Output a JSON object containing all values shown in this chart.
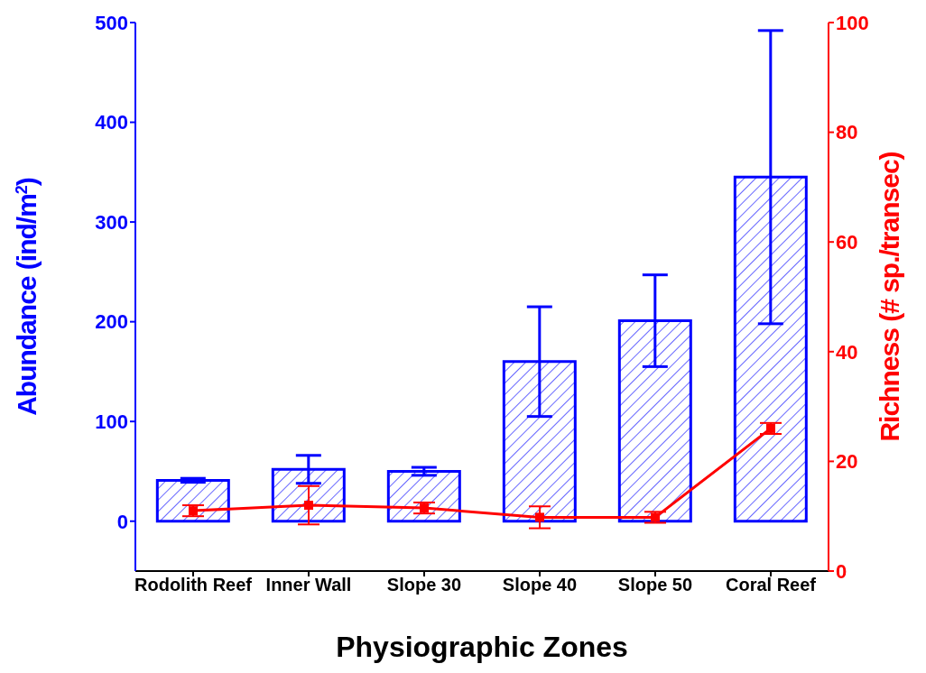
{
  "chart_data": {
    "type": "bar",
    "xlabel": "Physiographic Zones",
    "ylabel": "Abundance (ind/m$^{2}$)",
    "y2label": "Richness (# sp./transec)",
    "categories": [
      "Rodolith Reef",
      "Inner Wall",
      "Slope 30",
      "Slope 40",
      "Slope 50",
      "Coral Reef"
    ],
    "series": [
      {
        "color": "#0000ff",
        "values": [
          41,
          52,
          50,
          160,
          201,
          345
        ],
        "errors": [
          2,
          14,
          4,
          55,
          46,
          147
        ]
      },
      {
        "type": "line",
        "axis": "y2",
        "color": "#ff0000",
        "values": [
          11,
          12,
          11.5,
          9.8,
          9.8,
          26
        ],
        "errors": [
          1,
          3.5,
          1,
          2,
          1,
          1
        ],
        "marker": "square",
        "line_style": "solid"
      }
    ],
    "ylim": [
      -50,
      500
    ],
    "yticks": [
      0,
      100,
      200,
      300,
      400,
      500
    ],
    "y2lim": [
      0,
      100
    ],
    "y2ticks": [
      0,
      20,
      40,
      60,
      80,
      100
    ],
    "grid": false,
    "legend": false
  }
}
